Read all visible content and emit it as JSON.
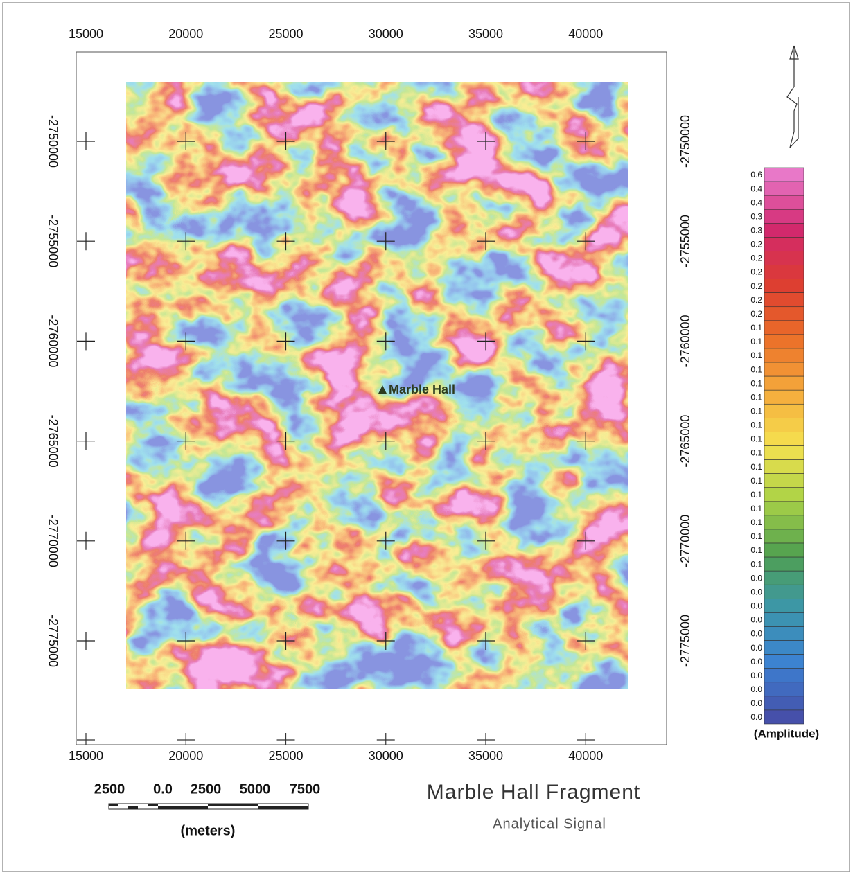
{
  "map": {
    "x_ticks_top": [
      15000,
      20000,
      25000,
      30000,
      35000,
      40000
    ],
    "x_ticks_bottom": [
      15000,
      20000,
      25000,
      30000,
      35000,
      40000
    ],
    "y_ticks_left": [
      -2750000,
      -2755000,
      -2760000,
      -2765000,
      -2770000,
      -2775000
    ],
    "y_ticks_right": [
      -2750000,
      -2755000,
      -2760000,
      -2765000,
      -2770000,
      -2775000
    ],
    "place_label": "Marble Hall"
  },
  "legend": {
    "labels": [
      "0.6",
      "0.4",
      "0.4",
      "0.3",
      "0.3",
      "0.2",
      "0.2",
      "0.2",
      "0.2",
      "0.2",
      "0.2",
      "0.1",
      "0.1",
      "0.1",
      "0.1",
      "0.1",
      "0.1",
      "0.1",
      "0.1",
      "0.1",
      "0.1",
      "0.1",
      "0.1",
      "0.1",
      "0.1",
      "0.1",
      "0.1",
      "0.1",
      "0.1",
      "0.0",
      "0.0",
      "0.0",
      "0.0",
      "0.0",
      "0.0",
      "0.0",
      "0.0",
      "0.0",
      "0.0",
      "0.0"
    ],
    "title": "(Amplitude)"
  },
  "scale_bar": {
    "labels": [
      "2500",
      "0.0",
      "2500",
      "5000",
      "7500"
    ],
    "unit": "(meters)"
  },
  "title": "Marble Hall Fragment",
  "subtitle": "Analytical Signal"
}
